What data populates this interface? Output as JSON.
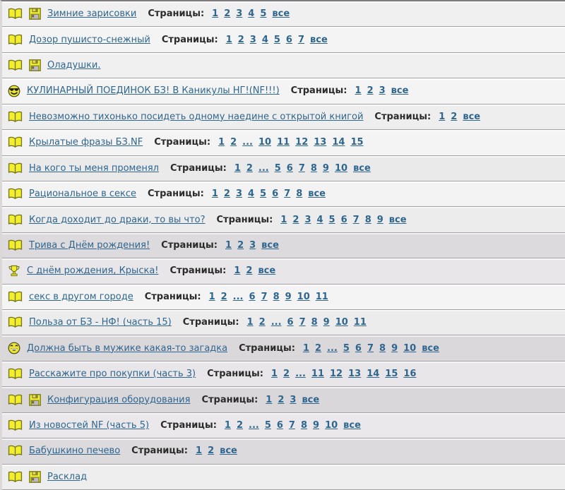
{
  "strings": {
    "pages_label": "Страницы:"
  },
  "colors": {
    "link_blue": "#2f6690",
    "label_dark": "#2b2b2b",
    "icon_yellow": "#f3ef2d",
    "icon_outline": "#77771a",
    "row_separator": "#a5a3a5",
    "page_top_border": "#7f7d7f"
  },
  "rows": [
    {
      "icons": [
        "open-book",
        "floppy-disk"
      ],
      "title": "Зимние зарисовки",
      "pages": [
        "1",
        "2",
        "3",
        "4",
        "5",
        "все"
      ],
      "bg": "#f1f0f1"
    },
    {
      "icons": [
        "open-book"
      ],
      "title": "Дозор пушисто-снежный",
      "pages": [
        "1",
        "2",
        "3",
        "4",
        "5",
        "6",
        "7",
        "все"
      ],
      "bg": "#f5f4f4"
    },
    {
      "icons": [
        "open-book",
        "floppy-disk"
      ],
      "title": "Оладушки.",
      "pages": [],
      "bg": "#f1f0f1"
    },
    {
      "icons": [
        "cool-smiley"
      ],
      "title": "КУЛИНАРНЫЙ ПОЕДИНОК БЗ! В Каникулы НГ!(NF!!!)",
      "pages": [
        "1",
        "2",
        "3",
        "все"
      ],
      "bg": "#f4f4f4"
    },
    {
      "icons": [
        "open-book"
      ],
      "title": "Невозможно тихонько посидеть одному наедине с открытой книгой",
      "pages": [
        "1",
        "2",
        "все"
      ],
      "bg": "#efeeee"
    },
    {
      "icons": [
        "open-book"
      ],
      "title": "Крылатые фразы БЗ.NF",
      "pages": [
        "1",
        "2",
        "...",
        "10",
        "11",
        "12",
        "13",
        "14",
        "15"
      ],
      "bg": "#f5f4f4"
    },
    {
      "icons": [
        "open-book"
      ],
      "title": "На кого ты меня променял",
      "pages": [
        "1",
        "2",
        "...",
        "5",
        "6",
        "7",
        "8",
        "9",
        "10",
        "все"
      ],
      "bg": "#ebeaeb"
    },
    {
      "icons": [
        "open-book"
      ],
      "title": "Рациональное в сексе",
      "pages": [
        "1",
        "2",
        "3",
        "4",
        "5",
        "6",
        "7",
        "8",
        "все"
      ],
      "bg": "#f4f3f4"
    },
    {
      "icons": [
        "open-book"
      ],
      "title": "Когда доходит до драки, то вы что?",
      "pages": [
        "1",
        "2",
        "3",
        "4",
        "5",
        "6",
        "7",
        "8",
        "9",
        "все"
      ],
      "bg": "#ececec"
    },
    {
      "icons": [
        "open-book"
      ],
      "title": "Трива с Днём рождения!",
      "pages": [
        "1",
        "2",
        "3",
        "все"
      ],
      "bg": "#dcdadc"
    },
    {
      "icons": [
        "trophy"
      ],
      "title": "С днём рождения, Крыска!",
      "pages": [
        "1",
        "2",
        "все"
      ],
      "bg": "#e8e6e8"
    },
    {
      "icons": [
        "open-book"
      ],
      "title": "секс в другом городе",
      "pages": [
        "1",
        "2",
        "...",
        "6",
        "7",
        "8",
        "9",
        "10",
        "11"
      ],
      "bg": "#f4f4f4"
    },
    {
      "icons": [
        "open-book"
      ],
      "title": "Польза от БЗ - НФ! (часть 15)",
      "pages": [
        "1",
        "2",
        "...",
        "6",
        "7",
        "8",
        "9",
        "10",
        "11"
      ],
      "bg": "#edecec"
    },
    {
      "icons": [
        "laugh-smiley"
      ],
      "title": "Должна быть в мужике какая-то загадка",
      "pages": [
        "1",
        "2",
        "...",
        "5",
        "6",
        "7",
        "8",
        "9",
        "10",
        "все"
      ],
      "bg": "#dbd8db"
    },
    {
      "icons": [
        "open-book"
      ],
      "title": "Расскажите про покупки (часть 3)",
      "pages": [
        "1",
        "2",
        "...",
        "11",
        "12",
        "13",
        "14",
        "15",
        "16"
      ],
      "bg": "#e8e6e8"
    },
    {
      "icons": [
        "open-book",
        "floppy-disk"
      ],
      "title": "Конфигурация оборудования",
      "pages": [
        "1",
        "2",
        "3",
        "все"
      ],
      "bg": "#d9d7d9"
    },
    {
      "icons": [
        "open-book"
      ],
      "title": "Из новостей NF (часть 5)",
      "pages": [
        "1",
        "2",
        "...",
        "5",
        "6",
        "7",
        "8",
        "9",
        "10",
        "все"
      ],
      "bg": "#eae8ea"
    },
    {
      "icons": [
        "open-book"
      ],
      "title": "Бабушкино печево",
      "pages": [
        "1",
        "2",
        "все"
      ],
      "bg": "#dcdadc"
    },
    {
      "icons": [
        "open-book",
        "floppy-disk"
      ],
      "title": "Расклад",
      "pages": [],
      "bg": "#efeeef"
    }
  ]
}
